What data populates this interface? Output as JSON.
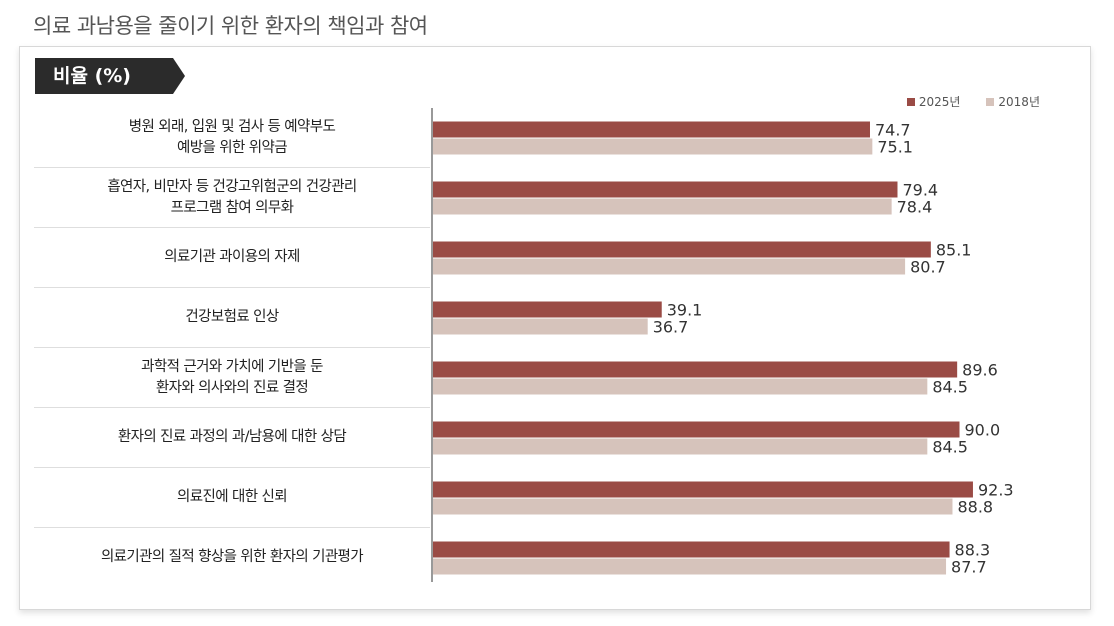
{
  "page_title": "의료 과남용을 줄이기 위한 환자의 책임과 참여",
  "header_label": "비율 (%)",
  "colors": {
    "series_2025": "#9a4b45",
    "series_2018": "#d6c3bb",
    "axis": "#999999"
  },
  "chart_data": {
    "type": "bar",
    "orientation": "horizontal",
    "title": "",
    "ylabel": "비율 (%)",
    "legend_position": "top-right",
    "categories": [
      "병원 외래, 입원 및 검사 등 예약부도\n예방을 위한 위약금",
      "흡연자, 비만자 등 건강고위험군의 건강관리\n프로그램 참여 의무화",
      "의료기관 과이용의 자제",
      "건강보험료 인상",
      "과학적 근거와 가치에 기반을 둔\n환자와 의사와의 진료 결정",
      "환자의 진료 과정의 과/남용에 대한 상담",
      "의료진에 대한 신뢰",
      "의료기관의 질적 향상을 위한 환자의 기관평가"
    ],
    "series": [
      {
        "name": "2025년",
        "values": [
          74.7,
          79.4,
          85.1,
          39.1,
          89.6,
          90.0,
          92.3,
          88.3
        ]
      },
      {
        "name": "2018년",
        "values": [
          75.1,
          78.4,
          80.7,
          36.7,
          84.5,
          84.5,
          88.8,
          87.7
        ]
      }
    ],
    "value_labels": [
      [
        "74.7",
        "79.4",
        "85.1",
        "39.1",
        "89.6",
        "90.0",
        "92.3",
        "88.3"
      ],
      [
        "75.1",
        "78.4",
        "80.7",
        "36.7",
        "84.5",
        "84.5",
        "88.8",
        "87.7"
      ]
    ],
    "xlim": [
      0,
      100
    ],
    "grid": false
  }
}
